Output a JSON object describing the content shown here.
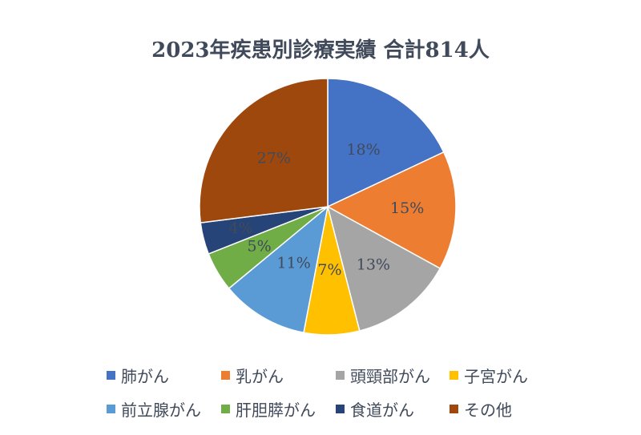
{
  "chart_data": {
    "type": "pie",
    "title": "2023年疾患別診療実績 合計814人",
    "start_angle_deg": 0,
    "direction": "clockwise",
    "legend_position": "bottom",
    "slices": [
      {
        "name": "肺がん",
        "percent": 18,
        "label": "18%",
        "color": "#4472c4"
      },
      {
        "name": "乳がん",
        "percent": 15,
        "label": "15%",
        "color": "#ed7d31"
      },
      {
        "name": "頭頸部がん",
        "percent": 13,
        "label": "13%",
        "color": "#a5a5a5"
      },
      {
        "name": "子宮がん",
        "percent": 7,
        "label": "7%",
        "color": "#ffc000"
      },
      {
        "name": "前立腺がん",
        "percent": 11,
        "label": "11%",
        "color": "#5b9bd5"
      },
      {
        "name": "肝胆膵がん",
        "percent": 5,
        "label": "5%",
        "color": "#70ad47"
      },
      {
        "name": "食道がん",
        "percent": 4,
        "label": "4%",
        "color": "#264478"
      },
      {
        "name": "その他",
        "percent": 27,
        "label": "27%",
        "color": "#9e480e"
      }
    ]
  }
}
